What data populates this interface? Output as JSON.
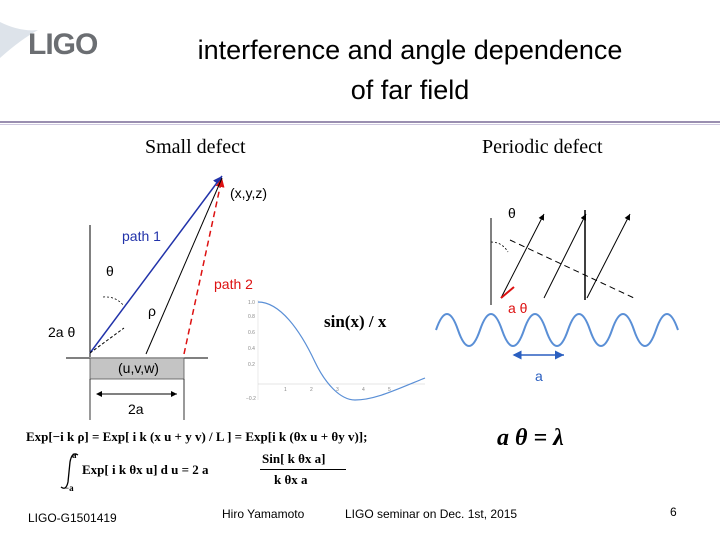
{
  "logo": {
    "text": "LIGO"
  },
  "slide": {
    "title_line1": "interference and angle dependence",
    "title_line2": "of far field"
  },
  "left_panel": {
    "header": "Small defect",
    "labels": {
      "point": "(x,y,z)",
      "path1": "path 1",
      "path2": "path 2",
      "theta": "θ",
      "rho": "ρ",
      "two_a_theta": "2a θ",
      "defect": "(u,v,w)",
      "width": "2a"
    }
  },
  "sinc_plot": {
    "formula": "sin(x) / x",
    "y_ticks": [
      "1.0",
      "0.8",
      "0.6",
      "0.4",
      "0.2",
      "",
      "−0.2"
    ],
    "x_ticks": [
      "1",
      "2",
      "3",
      "4",
      "5"
    ]
  },
  "right_panel": {
    "header": "Periodic defect",
    "labels": {
      "theta": "θ",
      "a_theta": "a θ",
      "period": "a"
    },
    "relation": "a θ = λ"
  },
  "equations": {
    "line1": "Exp[−i k ρ] = Exp[ i k (x u + y v) / L ] = Exp[i k (θx u + θy v)];",
    "integral_upper": "a",
    "integral_lower": "−a",
    "integrand": "Exp[ i k θx u] d u = 2 a",
    "numerator": "Sin[ k θx a]",
    "denominator": "k θx a"
  },
  "footer": {
    "doc_id": "LIGO-G1501419",
    "author": "Hiro Yamamoto",
    "event": "LIGO seminar on Dec. 1st, 2015",
    "page": "6"
  },
  "colors": {
    "path1": "#2233aa",
    "path2": "#dd1111",
    "curve": "#5a8fd6",
    "rule": "#9a8fb0"
  }
}
